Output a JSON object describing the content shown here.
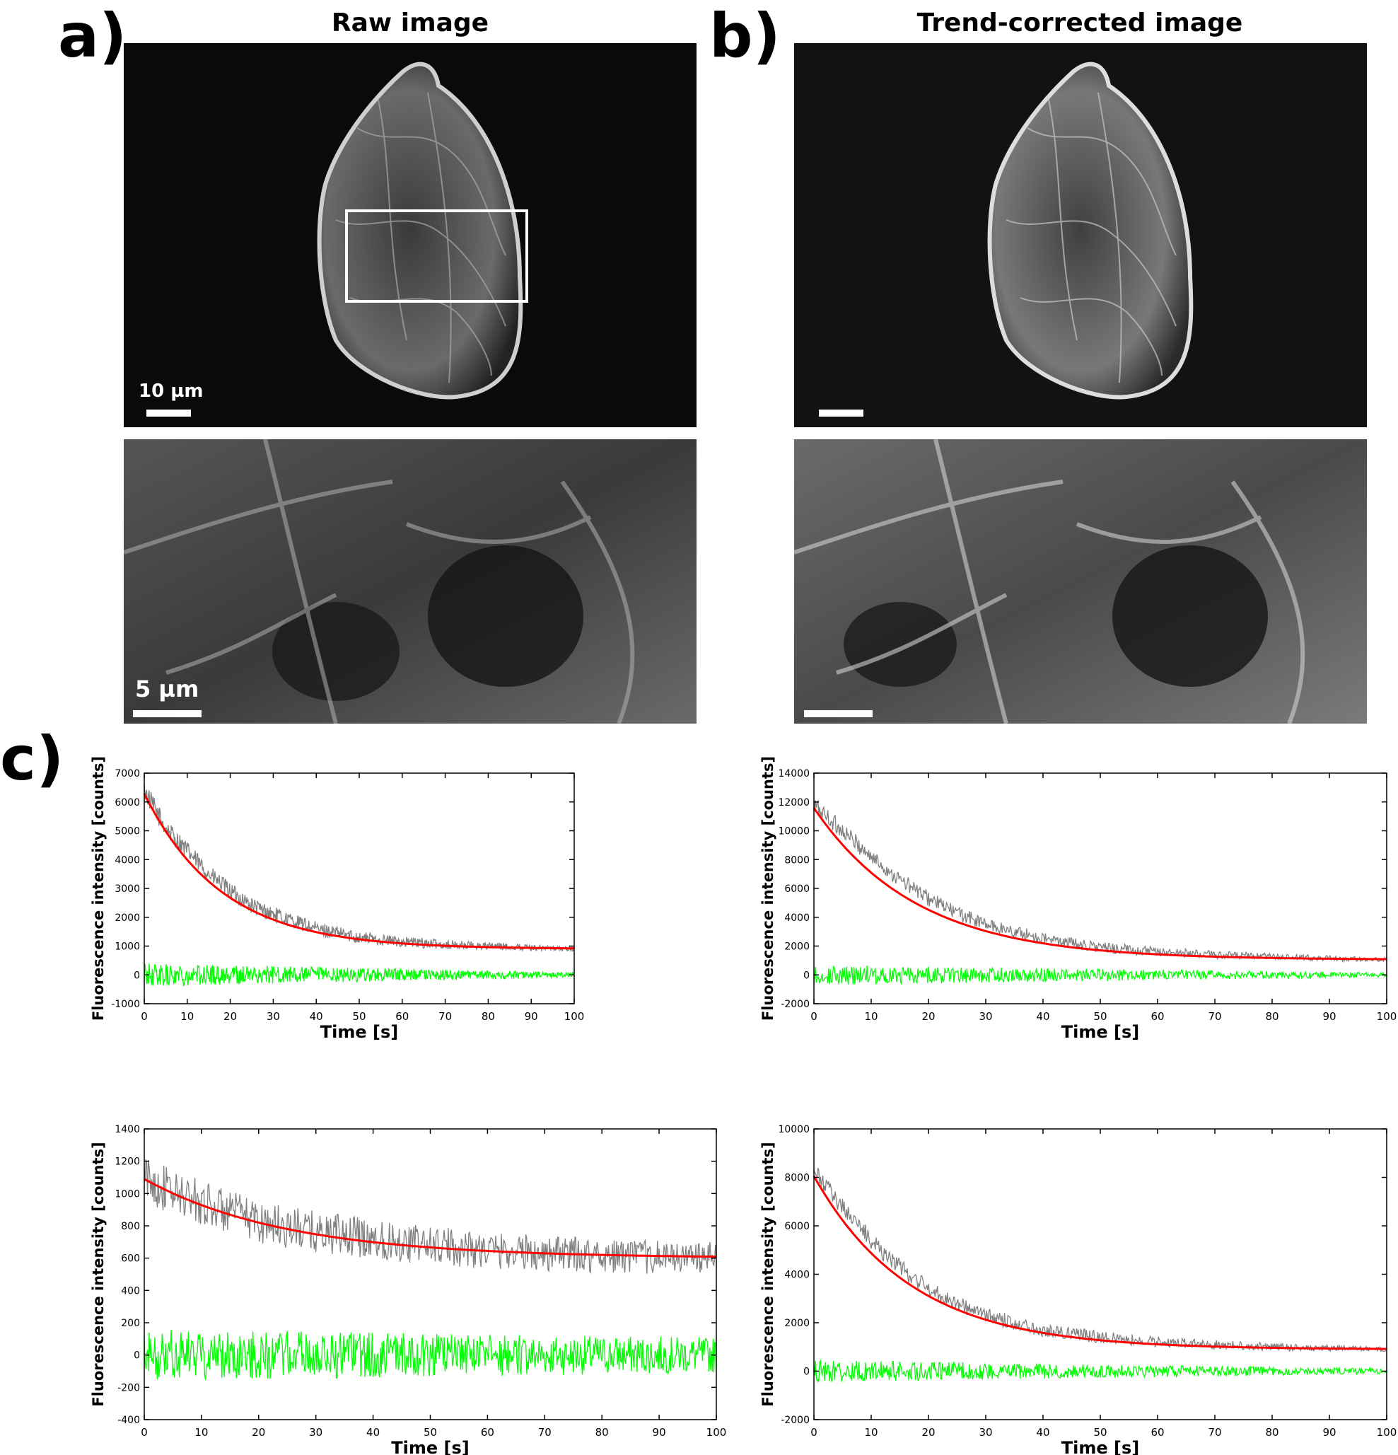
{
  "panels": {
    "a": {
      "label": "a)",
      "title": "Raw image",
      "scale_top": "10 µm",
      "scale_bottom": "5 µm"
    },
    "b": {
      "label": "b)",
      "title": "Trend-corrected image"
    },
    "c": {
      "label": "c)"
    }
  },
  "colors": {
    "raw": "#808080",
    "fit": "#ff0000",
    "residual": "#00ff00"
  },
  "chart_data": [
    {
      "type": "line",
      "xlabel": "Time [s]",
      "ylabel": "Fluorescence intensity [counts]",
      "xlim": [
        0,
        100
      ],
      "ylim": [
        -1000,
        7000
      ],
      "xticks": [
        0,
        10,
        20,
        30,
        40,
        50,
        60,
        70,
        80,
        90,
        100
      ],
      "yticks": [
        -1000,
        0,
        1000,
        2000,
        3000,
        4000,
        5000,
        6000,
        7000
      ],
      "fit": {
        "A": 5300,
        "tau": 18,
        "offset": 820
      },
      "series": [
        {
          "role": "data",
          "x": [
            0,
            5,
            10,
            15,
            20,
            25,
            30,
            40,
            50,
            60,
            70,
            80,
            90,
            100
          ],
          "y": [
            6400,
            5100,
            4300,
            3500,
            2900,
            2400,
            2100,
            1600,
            1300,
            1150,
            1050,
            1000,
            950,
            900
          ]
        },
        {
          "role": "fit",
          "x": [
            0,
            10,
            20,
            30,
            40,
            50,
            60,
            70,
            80,
            90,
            100
          ],
          "y": [
            6120,
            4360,
            3290,
            2660,
            2280,
            2050,
            1920,
            1840,
            1790,
            1760,
            1750
          ]
        },
        {
          "role": "residual",
          "x": [
            0,
            10,
            20,
            30,
            40,
            50,
            60,
            70,
            80,
            90,
            100
          ],
          "y": [
            0,
            0,
            0,
            0,
            0,
            0,
            0,
            0,
            0,
            0,
            0
          ],
          "amplitude_start": 400,
          "amplitude_end": 90
        }
      ]
    },
    {
      "type": "line",
      "xlabel": "Time [s]",
      "ylabel": "Fluorescence intensity [counts]",
      "xlim": [
        0,
        100
      ],
      "ylim": [
        -2000,
        14000
      ],
      "xticks": [
        0,
        10,
        20,
        30,
        40,
        50,
        60,
        70,
        80,
        90,
        100
      ],
      "yticks": [
        -2000,
        0,
        2000,
        4000,
        6000,
        8000,
        10000,
        12000,
        14000
      ],
      "fit": {
        "A": 10600,
        "tau": 18,
        "offset": 1000
      },
      "series": [
        {
          "role": "data",
          "x": [
            0,
            5,
            10,
            15,
            20,
            25,
            30,
            40,
            50,
            60,
            70,
            80,
            90,
            100
          ],
          "y": [
            11800,
            10000,
            8200,
            6600,
            5300,
            4300,
            3500,
            2500,
            1900,
            1600,
            1400,
            1250,
            1150,
            1050
          ]
        },
        {
          "role": "fit",
          "x": [
            0,
            10,
            20,
            30,
            40,
            50,
            60,
            70,
            80,
            90,
            100
          ],
          "y": [
            11600,
            7120,
            4860,
            3720,
            3150,
            2840,
            2690,
            2610,
            2570,
            2550,
            2540
          ]
        },
        {
          "role": "residual",
          "x": [
            0,
            10,
            20,
            30,
            40,
            50,
            60,
            70,
            80,
            90,
            100
          ],
          "y": [
            0,
            0,
            0,
            0,
            0,
            0,
            0,
            0,
            0,
            0,
            0
          ],
          "amplitude_start": 700,
          "amplitude_end": 150
        }
      ]
    },
    {
      "type": "line",
      "xlabel": "Time [s]",
      "ylabel": "Fluorescence intensity [counts]",
      "xlim": [
        0,
        100
      ],
      "ylim": [
        -400,
        1400
      ],
      "xticks": [
        0,
        10,
        20,
        30,
        40,
        50,
        60,
        70,
        80,
        90,
        100
      ],
      "yticks": [
        -400,
        -200,
        0,
        200,
        400,
        600,
        800,
        1000,
        1200,
        1400
      ],
      "fit": {
        "A": 500,
        "tau": 25,
        "offset": 590
      },
      "series": [
        {
          "role": "data",
          "x": [
            0,
            5,
            10,
            15,
            20,
            25,
            30,
            40,
            50,
            60,
            70,
            80,
            90,
            100
          ],
          "y": [
            1100,
            1000,
            950,
            880,
            830,
            790,
            760,
            720,
            680,
            650,
            630,
            615,
            605,
            600
          ]
        },
        {
          "role": "fit",
          "x": [
            0,
            10,
            20,
            30,
            40,
            50,
            60,
            70,
            80,
            90,
            100
          ],
          "y": [
            1090,
            925,
            815,
            740,
            690,
            660,
            640,
            630,
            620,
            610,
            605
          ]
        },
        {
          "role": "residual",
          "x": [
            0,
            10,
            20,
            30,
            40,
            50,
            60,
            70,
            80,
            90,
            100
          ],
          "y": [
            0,
            0,
            0,
            0,
            0,
            0,
            0,
            0,
            0,
            0,
            0
          ],
          "amplitude_start": 160,
          "amplitude_end": 110
        }
      ]
    },
    {
      "type": "line",
      "xlabel": "Time [s]",
      "ylabel": "Fluorescence intensity [counts]",
      "xlim": [
        0,
        100
      ],
      "ylim": [
        -2000,
        10000
      ],
      "xticks": [
        0,
        10,
        20,
        30,
        40,
        50,
        60,
        70,
        80,
        90,
        100
      ],
      "yticks": [
        -2000,
        0,
        2000,
        4000,
        6000,
        8000,
        10000
      ],
      "fit": {
        "A": 7000,
        "tau": 17,
        "offset": 850
      },
      "series": [
        {
          "role": "data",
          "x": [
            0,
            5,
            10,
            15,
            20,
            25,
            30,
            40,
            50,
            60,
            70,
            80,
            90,
            100
          ],
          "y": [
            8200,
            6800,
            5400,
            4300,
            3400,
            2800,
            2300,
            1700,
            1400,
            1200,
            1100,
            1000,
            950,
            900
          ]
        },
        {
          "role": "fit",
          "x": [
            0,
            10,
            20,
            30,
            40,
            50,
            60,
            70,
            80,
            90,
            100
          ],
          "y": [
            7850,
            4700,
            3180,
            2430,
            2070,
            1900,
            1820,
            1780,
            1760,
            1750,
            1750
          ]
        },
        {
          "role": "residual",
          "x": [
            0,
            10,
            20,
            30,
            40,
            50,
            60,
            70,
            80,
            90,
            100
          ],
          "y": [
            0,
            0,
            0,
            0,
            0,
            0,
            0,
            0,
            0,
            0,
            0
          ],
          "amplitude_start": 450,
          "amplitude_end": 110
        }
      ]
    }
  ]
}
